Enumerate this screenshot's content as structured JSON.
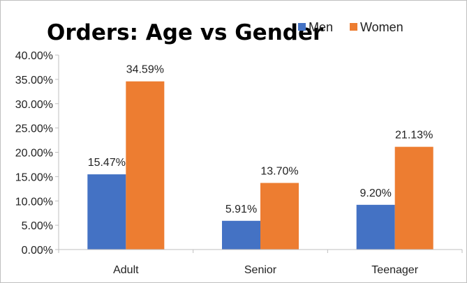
{
  "chart_data": {
    "type": "bar",
    "title": "Orders: Age vs Gender",
    "categories": [
      "Adult",
      "Senior",
      "Teenager"
    ],
    "series": [
      {
        "name": "Men",
        "values": [
          15.47,
          5.91,
          9.2
        ],
        "labels": [
          "15.47%",
          "5.91%",
          "9.20%"
        ],
        "color": "#4472C4"
      },
      {
        "name": "Women",
        "values": [
          34.59,
          13.7,
          21.13
        ],
        "labels": [
          "34.59%",
          "13.70%",
          "21.13%"
        ],
        "color": "#ED7D31"
      }
    ],
    "ylim": [
      0,
      40
    ],
    "y_ticks": [
      0,
      5,
      10,
      15,
      20,
      25,
      30,
      35,
      40
    ],
    "y_tick_labels": [
      "0.00%",
      "5.00%",
      "10.00%",
      "15.00%",
      "20.00%",
      "25.00%",
      "30.00%",
      "35.00%",
      "40.00%"
    ],
    "xlabel": "",
    "ylabel": "",
    "grid": false,
    "legend_position": "top-right",
    "axis_color": "#bfbfbf"
  }
}
